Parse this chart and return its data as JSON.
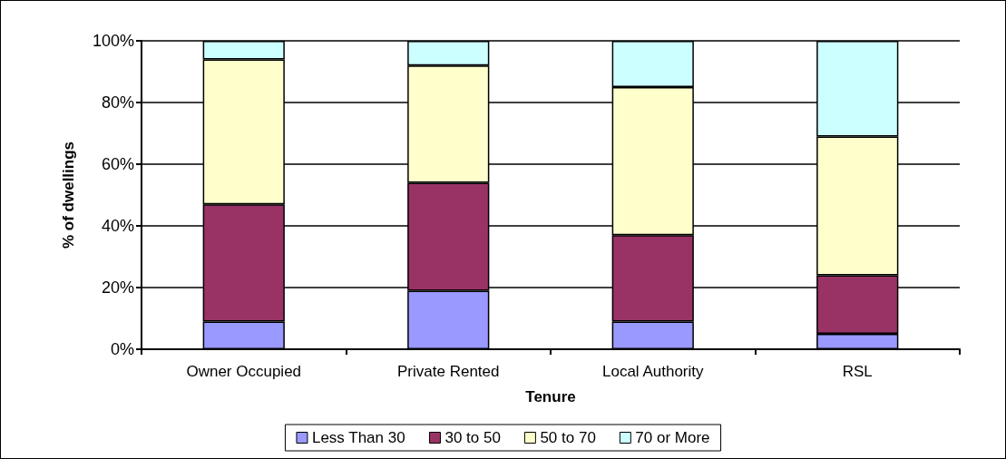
{
  "chart_data": {
    "type": "bar",
    "stacked": true,
    "xlabel": "Tenure",
    "ylabel": "% of dwellings",
    "categories": [
      "Owner Occupied",
      "Private Rented",
      "Local Authority",
      "RSL"
    ],
    "series": [
      {
        "name": "Less Than 30",
        "color": "#9999ff",
        "values": [
          9,
          19,
          9,
          5
        ]
      },
      {
        "name": "30 to 50",
        "color": "#993366",
        "values": [
          38,
          35,
          28,
          19
        ]
      },
      {
        "name": "50 to 70",
        "color": "#ffffcc",
        "values": [
          47,
          38,
          48,
          45
        ]
      },
      {
        "name": "70 or More",
        "color": "#ccffff",
        "values": [
          6,
          8,
          15,
          31
        ]
      }
    ],
    "ylim": [
      0,
      100
    ],
    "yticks": [
      {
        "value": 0,
        "label": "0%"
      },
      {
        "value": 20,
        "label": "20%"
      },
      {
        "value": 40,
        "label": "40%"
      },
      {
        "value": 60,
        "label": "60%"
      },
      {
        "value": 80,
        "label": "80%"
      },
      {
        "value": 100,
        "label": "100%"
      }
    ],
    "grid": "y",
    "legend": "bottom"
  }
}
